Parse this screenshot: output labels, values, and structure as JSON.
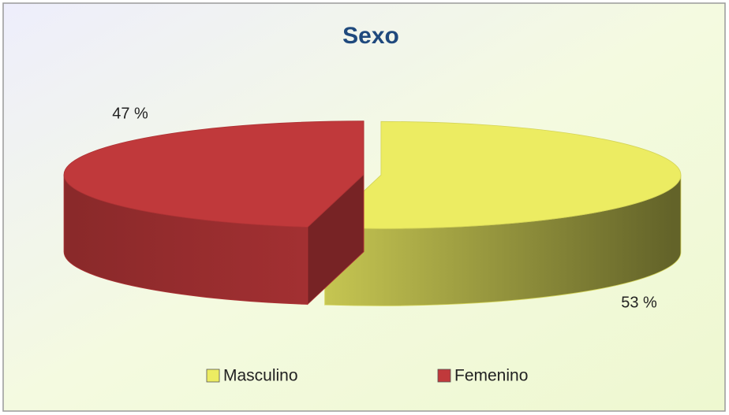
{
  "chart_data": {
    "type": "pie",
    "title": "Sexo",
    "categories": [
      "Masculino",
      "Femenino"
    ],
    "values": [
      53,
      47
    ],
    "value_labels": [
      "53 %",
      "47 %"
    ],
    "colors": [
      "#ecec62",
      "#c0393b"
    ],
    "legend": "bottom"
  }
}
